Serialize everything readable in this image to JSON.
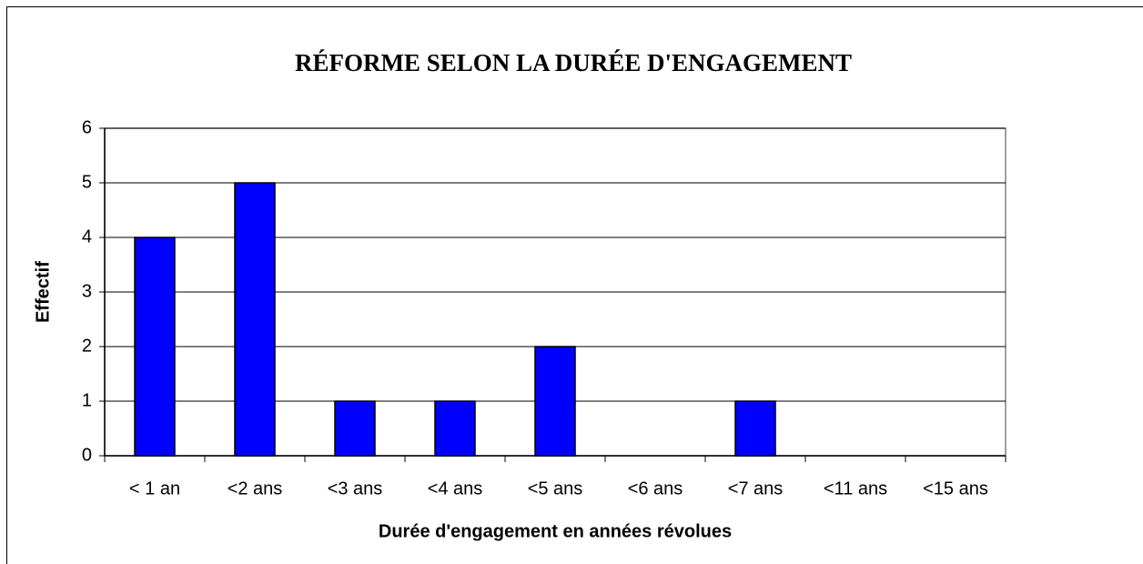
{
  "chart_data": {
    "type": "bar",
    "title": "RÉFORME SELON LA DURÉE D'ENGAGEMENT",
    "x_label": "Durée d'engagement en années révolues",
    "y_label": "Effectif",
    "categories": [
      "< 1 an",
      "<2 ans",
      "<3 ans",
      "<4 ans",
      "<5 ans",
      "<6 ans",
      "<7 ans",
      "<11 ans",
      "<15 ans"
    ],
    "values": [
      4,
      5,
      1,
      1,
      2,
      0,
      1,
      0,
      0
    ],
    "color": "#0000ff",
    "ylim": [
      0,
      6
    ],
    "yticks": [
      0,
      1,
      2,
      3,
      4,
      5,
      6
    ],
    "grid": true
  }
}
